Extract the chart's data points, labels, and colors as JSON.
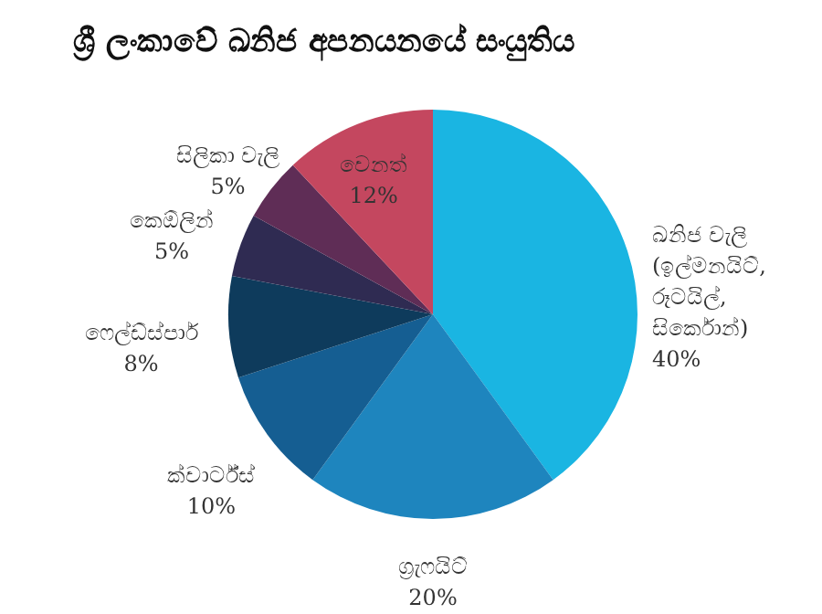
{
  "chart_data": {
    "type": "pie",
    "title": "ශ්‍රී ලංකාවේ ඛනිජ අපනයනයේ සංයුතිය",
    "categories": [
      "ඛනිජ වැලි\n(ඉල්මනයිට්,\nරූටයිල්,\nසිර්කොන්)",
      "ග්‍රැෆයිට්",
      "ක්වාර්ට්ස්",
      "ෆෙල්ඩ්ස්පාර්",
      "කෙඕලින්",
      "සිලිකා වැලි",
      "වෙනත්"
    ],
    "values": [
      40,
      20,
      10,
      8,
      5,
      5,
      12
    ],
    "value_labels": [
      "40%",
      "20%",
      "10%",
      "8%",
      "5%",
      "5%",
      "12%"
    ],
    "colors": [
      "#1ab5e2",
      "#1e85be",
      "#155e92",
      "#0e3b5c",
      "#2f2b52",
      "#5f2d56",
      "#c4475f"
    ],
    "legend": false
  }
}
